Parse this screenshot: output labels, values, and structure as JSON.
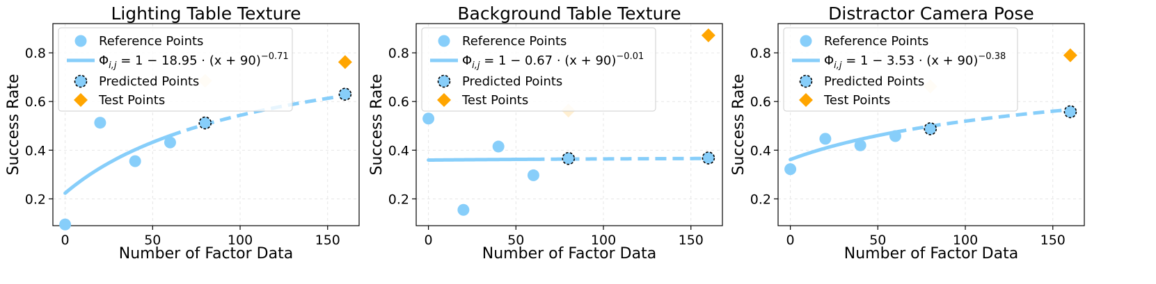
{
  "colors": {
    "reference": "#87CEFA",
    "predicted": "#87CEFA",
    "test": "#FFA500",
    "fit_line": "#87CEFA"
  },
  "legend_labels": {
    "reference": "Reference Points",
    "predicted": "Predicted Points",
    "test": "Test Points"
  },
  "chart_data": [
    {
      "type": "scatter",
      "title": "Lighting Table Texture",
      "xlabel": "Number of Factor Data",
      "ylabel": "Success Rate",
      "xlim": [
        -7,
        168
      ],
      "ylim": [
        0.09,
        0.92
      ],
      "xticks": [
        0,
        50,
        100,
        150
      ],
      "yticks": [
        0.2,
        0.4,
        0.6,
        0.8
      ],
      "grid": true,
      "legend_position": "top-left",
      "fit": {
        "a": 18.95,
        "b": -0.71,
        "c": 90,
        "formula": {
          "prefix": "Φ",
          "sub": "i,j",
          "body": " = 1 − 18.95 · (x + 90)",
          "exp": "−0.71"
        }
      },
      "reference_points": {
        "x": [
          0,
          20,
          40,
          60
        ],
        "y": [
          0.095,
          0.513,
          0.355,
          0.432
        ]
      },
      "predicted_points": {
        "x": [
          80,
          160
        ],
        "y": [
          0.512,
          0.63
        ]
      },
      "test_points": {
        "x": [
          80,
          160
        ],
        "y": [
          0.685,
          0.762
        ]
      }
    },
    {
      "type": "scatter",
      "title": "Background Table Texture",
      "xlabel": "Number of Factor Data",
      "ylabel": "Success Rate",
      "xlim": [
        -7,
        168
      ],
      "ylim": [
        0.09,
        0.92
      ],
      "xticks": [
        0,
        50,
        100,
        150
      ],
      "yticks": [
        0.2,
        0.4,
        0.6,
        0.8
      ],
      "grid": true,
      "legend_position": "top-left",
      "fit": {
        "a": 0.67,
        "b": -0.01,
        "c": 90,
        "formula": {
          "prefix": "Φ",
          "sub": "i,j",
          "body": " = 1 − 0.67 · (x + 90)",
          "exp": "−0.01"
        }
      },
      "reference_points": {
        "x": [
          0,
          20,
          40,
          60
        ],
        "y": [
          0.53,
          0.155,
          0.415,
          0.297
        ]
      },
      "predicted_points": {
        "x": [
          80,
          160
        ],
        "y": [
          0.366,
          0.368
        ]
      },
      "test_points": {
        "x": [
          80,
          160
        ],
        "y": [
          0.563,
          0.872
        ]
      }
    },
    {
      "type": "scatter",
      "title": "Distractor Camera Pose",
      "xlabel": "Number of Factor Data",
      "ylabel": "Success Rate",
      "xlim": [
        -7,
        168
      ],
      "ylim": [
        0.09,
        0.92
      ],
      "xticks": [
        0,
        50,
        100,
        150
      ],
      "yticks": [
        0.2,
        0.4,
        0.6,
        0.8
      ],
      "grid": true,
      "legend_position": "top-left",
      "fit": {
        "a": 3.53,
        "b": -0.38,
        "c": 90,
        "formula": {
          "prefix": "Φ",
          "sub": "i,j",
          "body": " = 1 − 3.53 · (x + 90)",
          "exp": "−0.38"
        }
      },
      "reference_points": {
        "x": [
          0,
          20,
          40,
          60
        ],
        "y": [
          0.322,
          0.447,
          0.42,
          0.458
        ]
      },
      "predicted_points": {
        "x": [
          80,
          160
        ],
        "y": [
          0.488,
          0.558
        ]
      },
      "test_points": {
        "x": [
          80,
          160
        ],
        "y": [
          0.662,
          0.79
        ]
      }
    }
  ]
}
